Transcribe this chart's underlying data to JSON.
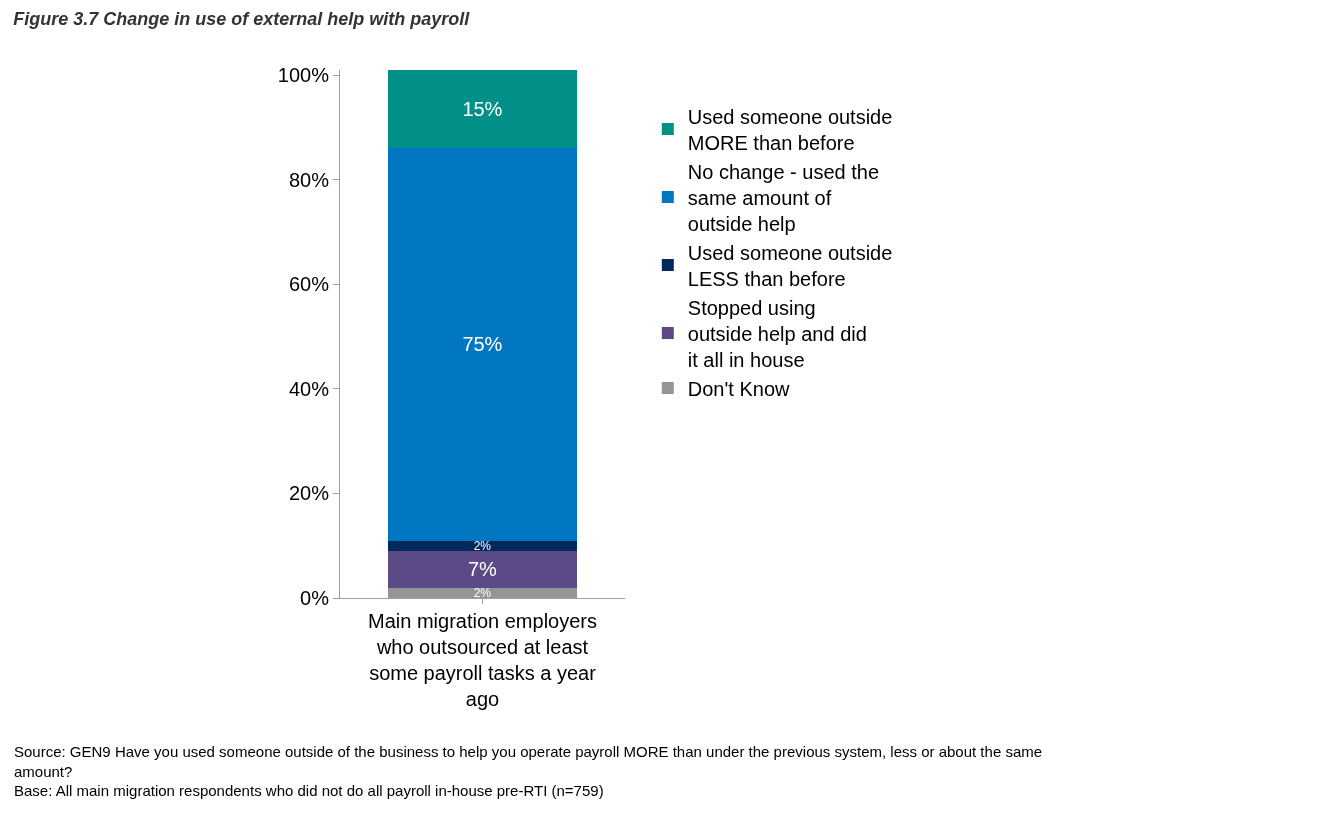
{
  "chart_data": {
    "type": "bar",
    "stacked": true,
    "title": "Figure 3.7 Change in use of external help with payroll",
    "categories": [
      "Main migration employers who outsourced at least some payroll tasks a year ago"
    ],
    "series": [
      {
        "name": "Don't Know",
        "color": "#959595",
        "values": [
          2
        ],
        "value_labels": [
          "2%"
        ]
      },
      {
        "name": "Stopped using outside help and did it all in house",
        "color": "#5c4a87",
        "values": [
          7
        ],
        "value_labels": [
          "7%"
        ]
      },
      {
        "name": "Used someone outside LESS than before",
        "color": "#002a5c",
        "values": [
          2
        ],
        "value_labels": [
          "2%"
        ]
      },
      {
        "name": "No change - used the same amount of outside help",
        "color": "#0077c0",
        "values": [
          75
        ],
        "value_labels": [
          "75%"
        ]
      },
      {
        "name": "Used someone outside MORE than before",
        "color": "#009088",
        "values": [
          15
        ],
        "value_labels": [
          "15%"
        ]
      }
    ],
    "ylim": [
      0,
      101
    ],
    "yticks": [
      {
        "value": 0,
        "label": "0%"
      },
      {
        "value": 20,
        "label": "20%"
      },
      {
        "value": 40,
        "label": "40%"
      },
      {
        "value": 60,
        "label": "60%"
      },
      {
        "value": 80,
        "label": "80%"
      },
      {
        "value": 100,
        "label": "100%"
      }
    ],
    "legend": "right",
    "annotations": [
      "Source: GEN9 Have you used someone outside of the business to help you operate payroll MORE than under the previous system, less or about the same amount?",
      "Base: All main migration respondents who did not do all payroll in-house pre-RTI (n=759)"
    ]
  }
}
